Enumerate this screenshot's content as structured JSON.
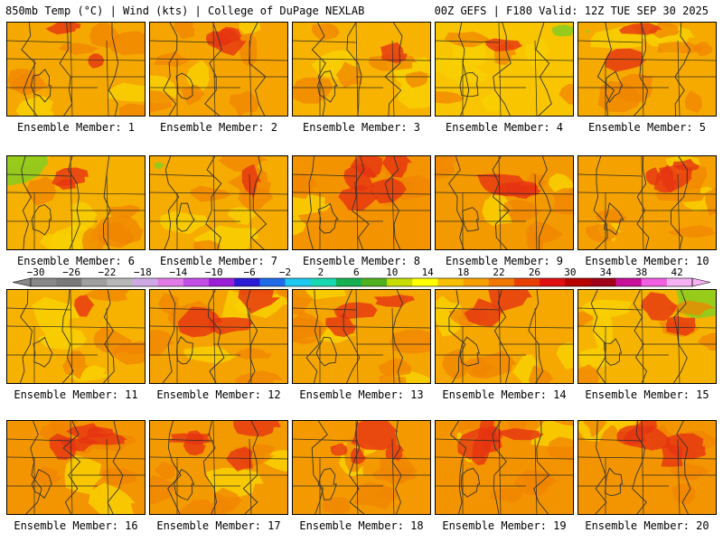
{
  "header": {
    "title_left": "850mb Temp (°C) | Wind (kts) | College of DuPage NEXLAB",
    "title_right": "00Z GEFS | F180 Valid: 12Z TUE SEP 30 2025"
  },
  "panels": [
    {
      "label": "Ensemble Member: 1",
      "base": "#f5a800",
      "hot": 0.15,
      "warm": 0.55,
      "cool": 0.2,
      "green": 0.0
    },
    {
      "label": "Ensemble Member: 2",
      "base": "#f6a400",
      "hot": 0.3,
      "warm": 0.55,
      "cool": 0.25,
      "green": 0.0
    },
    {
      "label": "Ensemble Member: 3",
      "base": "#f7b300",
      "hot": 0.1,
      "warm": 0.45,
      "cool": 0.35,
      "green": 0.0
    },
    {
      "label": "Ensemble Member: 4",
      "base": "#f9c400",
      "hot": 0.05,
      "warm": 0.35,
      "cool": 0.5,
      "green": 0.1
    },
    {
      "label": "Ensemble Member: 5",
      "base": "#f6aa00",
      "hot": 0.15,
      "warm": 0.55,
      "cool": 0.25,
      "green": 0.02
    },
    {
      "label": "Ensemble Member: 6",
      "base": "#f6b000",
      "hot": 0.15,
      "warm": 0.45,
      "cool": 0.35,
      "green": 0.3
    },
    {
      "label": "Ensemble Member: 7",
      "base": "#f6ab00",
      "hot": 0.1,
      "warm": 0.5,
      "cool": 0.3,
      "green": 0.05
    },
    {
      "label": "Ensemble Member: 8",
      "base": "#f39300",
      "hot": 0.45,
      "warm": 0.6,
      "cool": 0.15,
      "green": 0.0
    },
    {
      "label": "Ensemble Member: 9",
      "base": "#f39a00",
      "hot": 0.4,
      "warm": 0.55,
      "cool": 0.2,
      "green": 0.0
    },
    {
      "label": "Ensemble Member: 10",
      "base": "#f5a200",
      "hot": 0.35,
      "warm": 0.55,
      "cool": 0.25,
      "green": 0.0
    },
    {
      "label": "Ensemble Member: 11",
      "base": "#f7b200",
      "hot": 0.1,
      "warm": 0.5,
      "cool": 0.3,
      "green": 0.0
    },
    {
      "label": "Ensemble Member: 12",
      "base": "#f5a300",
      "hot": 0.25,
      "warm": 0.55,
      "cool": 0.25,
      "green": 0.0
    },
    {
      "label": "Ensemble Member: 13",
      "base": "#f5a500",
      "hot": 0.25,
      "warm": 0.55,
      "cool": 0.25,
      "green": 0.0
    },
    {
      "label": "Ensemble Member: 14",
      "base": "#f6a800",
      "hot": 0.2,
      "warm": 0.55,
      "cool": 0.3,
      "green": 0.0
    },
    {
      "label": "Ensemble Member: 15",
      "base": "#f6b400",
      "hot": 0.15,
      "warm": 0.45,
      "cool": 0.35,
      "green": 0.3
    },
    {
      "label": "Ensemble Member: 16",
      "base": "#f39500",
      "hot": 0.45,
      "warm": 0.6,
      "cool": 0.15,
      "green": 0.0
    },
    {
      "label": "Ensemble Member: 17",
      "base": "#f39a00",
      "hot": 0.4,
      "warm": 0.6,
      "cool": 0.2,
      "green": 0.0
    },
    {
      "label": "Ensemble Member: 18",
      "base": "#f49a00",
      "hot": 0.4,
      "warm": 0.6,
      "cool": 0.2,
      "green": 0.0
    },
    {
      "label": "Ensemble Member: 19",
      "base": "#f39300",
      "hot": 0.45,
      "warm": 0.6,
      "cool": 0.15,
      "green": 0.0
    },
    {
      "label": "Ensemble Member: 20",
      "base": "#f39500",
      "hot": 0.45,
      "warm": 0.6,
      "cool": 0.2,
      "green": 0.0
    }
  ],
  "colorbar": {
    "ticks": [
      "−30",
      "−26",
      "−22",
      "−18",
      "−14",
      "−10",
      "−6",
      "−2",
      "2",
      "6",
      "10",
      "14",
      "18",
      "22",
      "26",
      "30",
      "34",
      "38",
      "42"
    ],
    "colors": [
      "#888888",
      "#7a7a7a",
      "#a0a0a0",
      "#b8b8b8",
      "#cfa9e6",
      "#e07be8",
      "#c34ee6",
      "#9a1ed6",
      "#2a1bd6",
      "#1f6be8",
      "#1ec8f0",
      "#17d8b0",
      "#18b050",
      "#4fb020",
      "#c8dc00",
      "#ffff00",
      "#f6c000",
      "#f5a000",
      "#f07800",
      "#e84000",
      "#e01010",
      "#b80000",
      "#a00018",
      "#c8109a",
      "#f060e0",
      "#f8b0f4"
    ]
  },
  "colors": {
    "hot": "#e63312",
    "warm": "#f08400",
    "cool": "#f8d000",
    "green": "#8ccc1e",
    "border": "#2a2a2a"
  }
}
